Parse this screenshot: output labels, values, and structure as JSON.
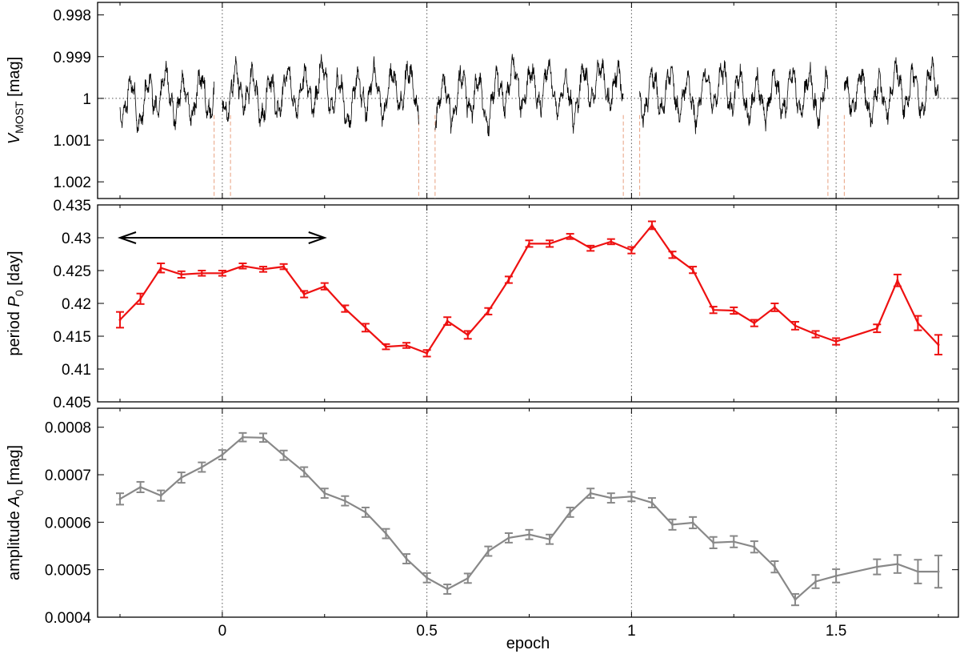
{
  "chart_data": [
    {
      "type": "line",
      "panel": "lightcurve",
      "ylabel": {
        "main": "V",
        "sub": "MOST",
        "unit": " [mag]"
      },
      "xlim": [
        -0.25,
        1.75
      ],
      "ylim": [
        1.0024,
        0.9977
      ],
      "y_inverted": true,
      "yticks": [
        "0.998",
        "0.999",
        "1",
        "1.001",
        "1.002"
      ],
      "ytick_values": [
        0.998,
        0.999,
        1.0,
        1.001,
        1.002
      ],
      "grid_y": [
        1.0
      ],
      "segments": [
        [
          -0.25,
          -0.02
        ],
        [
          0.0,
          0.48
        ],
        [
          0.52,
          0.98
        ],
        [
          1.02,
          1.48
        ],
        [
          1.52,
          1.75
        ]
      ],
      "series": [
        {
          "color": "#000000",
          "x": [
            -0.25,
            -0.2,
            -0.15,
            -0.1,
            -0.05,
            0.0,
            0.05,
            0.1,
            0.15,
            0.2,
            0.25,
            0.3,
            0.35,
            0.4,
            0.45,
            0.5,
            0.55,
            0.6,
            0.65,
            0.7,
            0.75,
            0.8,
            0.85,
            0.9,
            0.95,
            1.0,
            1.05,
            1.1,
            1.15,
            1.2,
            1.25,
            1.3,
            1.35,
            1.4,
            1.45,
            1.5,
            1.55,
            1.6,
            1.65,
            1.7,
            1.75
          ],
          "values": [
            1.0,
            1.0002,
            0.9998,
            1.0001,
            0.9999,
            1.0,
            0.9997,
            1.0001,
            0.9998,
            0.9999,
            0.9996,
            1.0002,
            0.9998,
            0.9999,
            0.9997,
            1.0,
            1.0001,
            0.9998,
            1.0002,
            0.9996,
            0.9998,
            0.9997,
            1.0001,
            0.9996,
            0.9997,
            1.0,
            0.9999,
            0.9998,
            1.0001,
            0.9997,
            0.9998,
            1.0001,
            0.9999,
            0.9998,
            1.0,
            1.0,
            0.9998,
            1.0001,
            0.9997,
            0.9999,
            0.9996
          ]
        },
        {
          "color": "#e8a080",
          "x": [
            -0.02,
            0.02,
            0.48,
            0.52,
            0.98,
            1.02,
            1.48,
            1.52
          ],
          "values": [
            1.0024,
            1.0024,
            1.0024,
            1.0024,
            1.0024,
            1.0024,
            1.0024,
            1.0024
          ]
        }
      ]
    },
    {
      "type": "line",
      "panel": "period",
      "ylabel": {
        "main": "period ",
        "italic": "P",
        "sub": "0",
        "unit": " [day]"
      },
      "xlim": [
        -0.25,
        1.75
      ],
      "ylim": [
        0.405,
        0.435
      ],
      "yticks": [
        "0.405",
        "0.41",
        "0.415",
        "0.42",
        "0.425",
        "0.43",
        "0.435"
      ],
      "ytick_values": [
        0.405,
        0.41,
        0.415,
        0.42,
        0.425,
        0.43,
        0.435
      ],
      "arrow": {
        "x_from": -0.25,
        "x_to": 0.25,
        "y": 0.43
      },
      "series": [
        {
          "color": "#ee1111",
          "x": [
            -0.25,
            -0.2,
            -0.15,
            -0.1,
            -0.05,
            0.0,
            0.05,
            0.1,
            0.15,
            0.2,
            0.25,
            0.3,
            0.35,
            0.4,
            0.45,
            0.5,
            0.55,
            0.6,
            0.65,
            0.7,
            0.75,
            0.8,
            0.85,
            0.9,
            0.95,
            1.0,
            1.05,
            1.1,
            1.15,
            1.2,
            1.25,
            1.3,
            1.35,
            1.4,
            1.45,
            1.5,
            1.6,
            1.65,
            1.7,
            1.75
          ],
          "values": [
            0.4175,
            0.4207,
            0.4254,
            0.4244,
            0.4246,
            0.4246,
            0.4257,
            0.4252,
            0.4256,
            0.4214,
            0.4226,
            0.4192,
            0.4163,
            0.4134,
            0.4136,
            0.4124,
            0.4173,
            0.4152,
            0.4188,
            0.4236,
            0.4291,
            0.4291,
            0.4302,
            0.4284,
            0.4294,
            0.4281,
            0.4319,
            0.4274,
            0.4251,
            0.419,
            0.4189,
            0.417,
            0.4194,
            0.4166,
            0.4153,
            0.4142,
            0.4162,
            0.4235,
            0.417,
            0.4137
          ],
          "errors": [
            0.0012,
            0.0008,
            0.0007,
            0.0005,
            0.0004,
            0.0004,
            0.0004,
            0.0004,
            0.0004,
            0.0005,
            0.0005,
            0.0005,
            0.0006,
            0.0004,
            0.0004,
            0.0005,
            0.0006,
            0.0006,
            0.0005,
            0.0005,
            0.0005,
            0.0005,
            0.0004,
            0.0004,
            0.0004,
            0.0005,
            0.0006,
            0.0005,
            0.0005,
            0.0005,
            0.0005,
            0.0005,
            0.0006,
            0.0006,
            0.0005,
            0.0005,
            0.0006,
            0.0009,
            0.0011,
            0.0015
          ]
        }
      ]
    },
    {
      "type": "line",
      "panel": "amplitude",
      "ylabel": {
        "main": "amplitude ",
        "italic": "A",
        "sub": "0",
        "unit": " [mag]"
      },
      "xlabel": "epoch",
      "xlim": [
        -0.25,
        1.75
      ],
      "ylim": [
        0.0004,
        0.00084
      ],
      "xticks": [
        "0",
        "0.5",
        "1",
        "1.5"
      ],
      "xtick_values": [
        0,
        0.5,
        1,
        1.5
      ],
      "yticks": [
        "0.0004",
        "0.0005",
        "0.0006",
        "0.0007",
        "0.0008"
      ],
      "ytick_values": [
        0.0004,
        0.0005,
        0.0006,
        0.0007,
        0.0008
      ],
      "series": [
        {
          "color": "#888888",
          "x": [
            -0.25,
            -0.2,
            -0.15,
            -0.1,
            -0.05,
            0.0,
            0.05,
            0.1,
            0.15,
            0.2,
            0.25,
            0.3,
            0.35,
            0.4,
            0.45,
            0.5,
            0.55,
            0.6,
            0.65,
            0.7,
            0.75,
            0.8,
            0.85,
            0.9,
            0.95,
            1.0,
            1.05,
            1.1,
            1.15,
            1.2,
            1.25,
            1.3,
            1.35,
            1.4,
            1.45,
            1.5,
            1.6,
            1.65,
            1.7,
            1.75
          ],
          "values": [
            0.000649,
            0.000674,
            0.000656,
            0.000694,
            0.000716,
            0.000742,
            0.000779,
            0.000778,
            0.000741,
            0.000706,
            0.000661,
            0.000645,
            0.000621,
            0.000576,
            0.000523,
            0.000483,
            0.000459,
            0.000482,
            0.000539,
            0.000567,
            0.000574,
            0.000564,
            0.000621,
            0.000661,
            0.000651,
            0.000654,
            0.000641,
            0.000595,
            0.000599,
            0.000557,
            0.000559,
            0.000548,
            0.000506,
            0.000437,
            0.000475,
            0.000487,
            0.000506,
            0.000512,
            0.000496,
            0.000496
          ],
          "errors": [
            1.2e-05,
            1.1e-05,
            1.1e-05,
            1.1e-05,
            1e-05,
            1e-05,
            9e-06,
            9e-06,
            1e-05,
            1e-05,
            1e-05,
            1e-05,
            1e-05,
            1e-05,
            1e-05,
            1e-05,
            1e-05,
            1e-05,
            1e-05,
            1e-05,
            1e-05,
            1e-05,
            1e-05,
            1e-05,
            1e-05,
            1e-05,
            1e-05,
            1.1e-05,
            1.2e-05,
            1.2e-05,
            1.2e-05,
            1.2e-05,
            1.2e-05,
            1.2e-05,
            1.4e-05,
            1.4e-05,
            1.6e-05,
            1.9e-05,
            2.5e-05,
            3.4e-05
          ]
        }
      ]
    }
  ]
}
